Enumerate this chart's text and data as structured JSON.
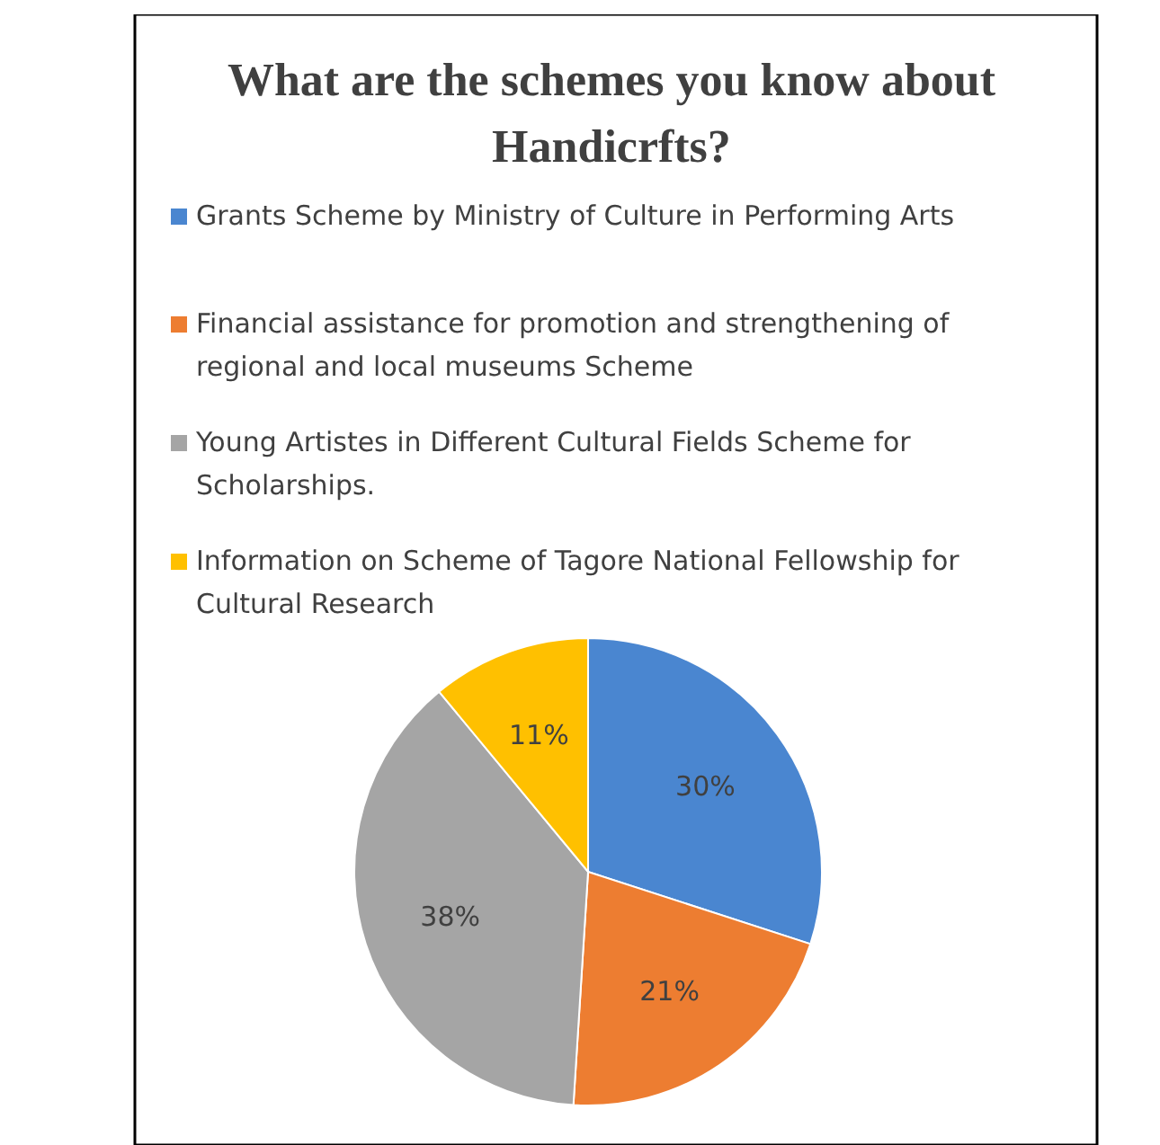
{
  "chart_data": {
    "type": "pie",
    "title": "What are the schemes you know about Handicrfts?",
    "categories": [
      "Grants Scheme by Ministry of Culture in Performing Arts",
      "Financial assistance for promotion and strengthening of regional and local museums Scheme",
      "Young Artistes in Different Cultural Fields Scheme for Scholarships.",
      "Information on Scheme of Tagore National Fellowship for Cultural Research"
    ],
    "values": [
      30,
      21,
      38,
      11
    ],
    "colors": [
      "#4a86d0",
      "#ed7d31",
      "#a5a5a5",
      "#ffc000"
    ],
    "value_labels": [
      "30%",
      "21%",
      "38%",
      "11%"
    ],
    "legend": "top"
  }
}
